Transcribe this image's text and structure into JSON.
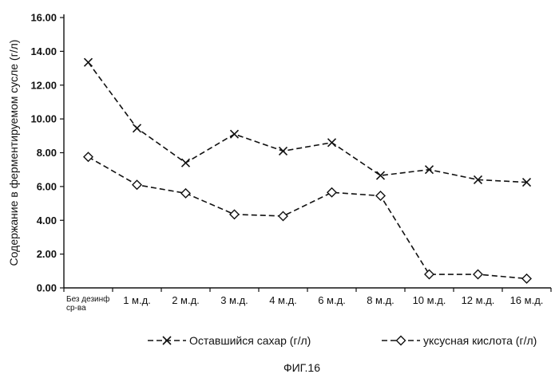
{
  "chart_data": {
    "type": "line",
    "ylabel": "Содержание в ферментируемом сусле (г/л)",
    "xlabel": "",
    "ylim": [
      0,
      16
    ],
    "yticks": [
      "0.00",
      "2.00",
      "4.00",
      "6.00",
      "8.00",
      "10.00",
      "12.00",
      "14.00",
      "16.00"
    ],
    "categories": [
      "Без дезинф ср-ва",
      "1 м.д.",
      "2 м.д.",
      "3 м.д.",
      "4 м.д.",
      "6 м.д.",
      "8 м.д.",
      "10 м.д.",
      "12 м.д.",
      "16 м.д."
    ],
    "series": [
      {
        "name": "Оставшийся сахар (г/л)",
        "marker": "x",
        "color": "#111111",
        "values": [
          13.35,
          9.45,
          7.4,
          9.1,
          8.1,
          8.6,
          6.65,
          7.0,
          6.4,
          6.25
        ]
      },
      {
        "name": "уксусная кислота (г/л)",
        "marker": "diamond",
        "color": "#111111",
        "values": [
          7.75,
          6.1,
          5.6,
          4.35,
          4.25,
          5.65,
          5.45,
          0.8,
          0.8,
          0.55
        ]
      }
    ],
    "legend_position": "bottom",
    "grid": false
  },
  "caption": "ФИГ.16"
}
